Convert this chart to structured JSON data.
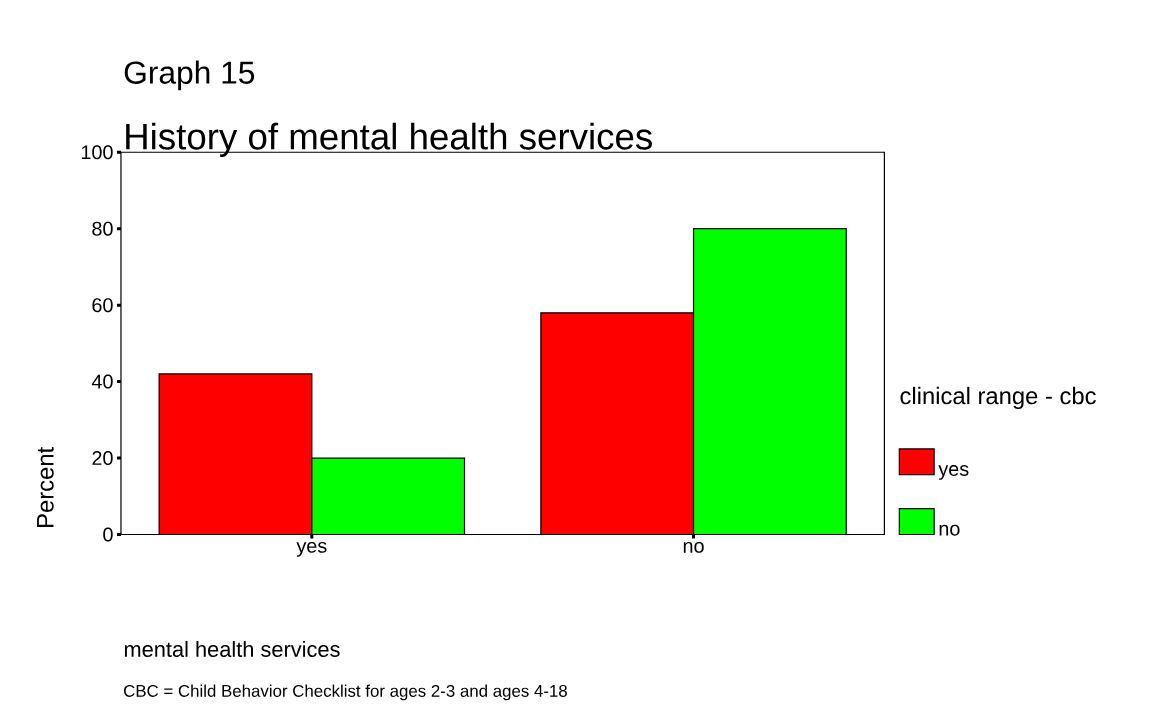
{
  "chart_data": {
    "type": "bar",
    "title": "Graph 15",
    "subtitle": "History of  mental health services",
    "xlabel": "mental health services",
    "ylabel": "Percent",
    "legend_title": "clinical range - cbc",
    "categories": [
      "yes",
      "no"
    ],
    "series": [
      {
        "name": "yes",
        "color": "#ff0000",
        "values": [
          42,
          58
        ]
      },
      {
        "name": "no",
        "color": "#00ff00",
        "values": [
          20,
          80
        ]
      }
    ],
    "ylim": [
      0,
      100
    ],
    "yticks": [
      0,
      20,
      40,
      60,
      80,
      100
    ],
    "grid": false,
    "legend": "right",
    "annotations": [
      "CBC = Child Behavior Checklist for ages 2-3 and ages 4-18"
    ]
  }
}
